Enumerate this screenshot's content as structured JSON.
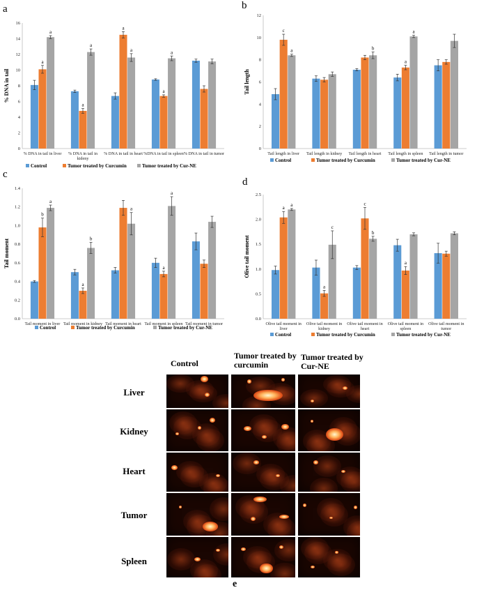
{
  "legend": [
    "Control",
    "Tumor treated by Curcumin",
    "Tumor treated by Cur-NE"
  ],
  "colors": {
    "control": "#5b9bd5",
    "curcumin": "#ed7d31",
    "curne": "#a5a5a5"
  },
  "chart_data": [
    {
      "panel": "a",
      "type": "bar",
      "ylabel": "% DNA in tail",
      "ylim": [
        0,
        16
      ],
      "ystep": 2,
      "categories": [
        "% DNA in tail in liver",
        "% DNA in tail in kideny",
        "% DNA in tail in heart",
        "%DNA in tail in spleen",
        "% DNA in tail in tumor"
      ],
      "series": [
        {
          "name": "Control",
          "values": [
            8.1,
            7.3,
            6.7,
            8.8,
            11.2
          ],
          "errors": [
            0.6,
            0.15,
            0.4,
            0.1,
            0.2
          ],
          "labels": [
            "",
            "",
            "",
            "",
            ""
          ]
        },
        {
          "name": "Tumor treated by Curcumin",
          "values": [
            10.1,
            4.8,
            14.5,
            6.7,
            7.6
          ],
          "errors": [
            0.5,
            0.3,
            0.4,
            0.15,
            0.4
          ],
          "labels": [
            "a",
            "a",
            "a",
            "a",
            ""
          ]
        },
        {
          "name": "Tumor treated by Cur-NE",
          "values": [
            14.2,
            12.3,
            11.6,
            11.5,
            11.1
          ],
          "errors": [
            0.2,
            0.4,
            0.5,
            0.3,
            0.3
          ],
          "labels": [
            "a",
            "a",
            "a",
            "a",
            ""
          ]
        }
      ]
    },
    {
      "panel": "b",
      "type": "bar",
      "ylabel": "Tail length",
      "ylim": [
        0,
        12
      ],
      "ystep": 2,
      "categories": [
        "Tail length in liver",
        "Tail length in kidney",
        "Tail length in heart",
        "Tail length in spleen",
        "Tail length in tumor"
      ],
      "series": [
        {
          "name": "Control",
          "values": [
            4.9,
            6.3,
            7.1,
            6.4,
            7.5
          ],
          "errors": [
            0.5,
            0.25,
            0.1,
            0.3,
            0.5
          ],
          "labels": [
            "",
            "",
            "",
            "",
            ""
          ]
        },
        {
          "name": "Tumor treated by Curcumin",
          "values": [
            9.8,
            6.2,
            8.2,
            7.3,
            7.8
          ],
          "errors": [
            0.5,
            0.2,
            0.2,
            0.2,
            0.2
          ],
          "labels": [
            "c",
            "",
            "",
            "a",
            ""
          ]
        },
        {
          "name": "Tumor treated by Cur-NE",
          "values": [
            8.4,
            6.7,
            8.4,
            10.1,
            9.7
          ],
          "errors": [
            0.1,
            0.2,
            0.3,
            0.1,
            0.6
          ],
          "labels": [
            "a",
            "",
            "b",
            "a",
            ""
          ]
        }
      ]
    },
    {
      "panel": "c",
      "type": "bar",
      "ylabel": "Tail moment",
      "ylim": [
        0,
        1.4
      ],
      "ystep": 0.2,
      "categories": [
        "Tail moment in liver",
        "Tail moment in kidney",
        "Tail moment in heart",
        "Tail moment in spleen",
        "Tail moment in tumor"
      ],
      "series": [
        {
          "name": "Control",
          "values": [
            0.4,
            0.5,
            0.52,
            0.6,
            0.83
          ],
          "errors": [
            0.01,
            0.03,
            0.03,
            0.05,
            0.09
          ],
          "labels": [
            "",
            "",
            "",
            "",
            ""
          ]
        },
        {
          "name": "Tumor treated by Curcumin",
          "values": [
            0.98,
            0.3,
            1.19,
            0.48,
            0.59
          ],
          "errors": [
            0.1,
            0.03,
            0.08,
            0.03,
            0.04
          ],
          "labels": [
            "b",
            "a",
            "",
            "a",
            ""
          ]
        },
        {
          "name": "Tumor treated by Cur-NE",
          "values": [
            1.19,
            0.76,
            1.02,
            1.21,
            1.04
          ],
          "errors": [
            0.03,
            0.06,
            0.12,
            0.1,
            0.06
          ],
          "labels": [
            "a",
            "b",
            "a",
            "a",
            ""
          ]
        }
      ]
    },
    {
      "panel": "d",
      "type": "bar",
      "ylabel": "Olive tail moment",
      "ylim": [
        0,
        2.5
      ],
      "ystep": 0.5,
      "categories": [
        "Olive tail moment in liver",
        "Olive tail moment in kidney",
        "Olive tail moment in heart",
        "Olive tail moment in spleen",
        "Olive tail moment in tumor"
      ],
      "series": [
        {
          "name": "Control",
          "values": [
            0.98,
            1.03,
            1.03,
            1.48,
            1.32
          ],
          "errors": [
            0.08,
            0.15,
            0.04,
            0.12,
            0.2
          ],
          "labels": [
            "",
            "",
            "",
            "",
            ""
          ]
        },
        {
          "name": "Tumor treated by Curcumin",
          "values": [
            2.04,
            0.51,
            2.02,
            0.97,
            1.31
          ],
          "errors": [
            0.12,
            0.06,
            0.22,
            0.08,
            0.05
          ],
          "labels": [
            "a",
            "a",
            "c",
            "a",
            ""
          ]
        },
        {
          "name": "Tumor treated by Cur-NE",
          "values": [
            2.2,
            1.49,
            1.61,
            1.7,
            1.72
          ],
          "errors": [
            0.02,
            0.28,
            0.05,
            0.03,
            0.03
          ],
          "labels": [
            "a",
            "c",
            "b",
            "",
            ""
          ]
        }
      ]
    }
  ],
  "comet": {
    "columns": [
      "Control",
      "Tumor treated by curcumin",
      "Tumor treated by Cur-NE"
    ],
    "rows": [
      "Liver",
      "Kidney",
      "Heart",
      "Tumor",
      "Spleen"
    ],
    "panel_label": "e"
  }
}
